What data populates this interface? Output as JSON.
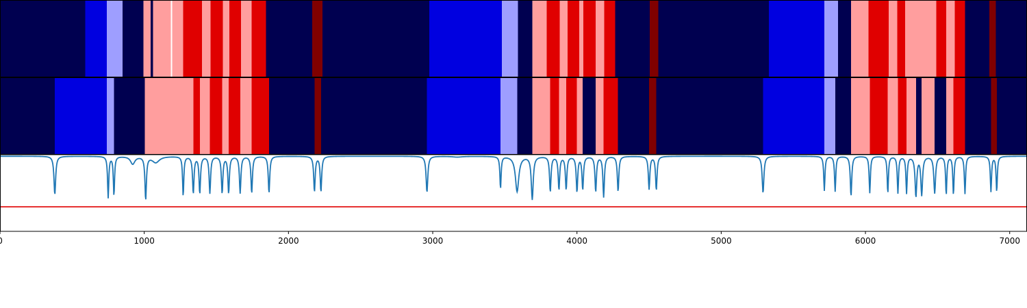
{
  "chart_data": [
    {
      "type": "heatmap",
      "title": "",
      "xlim": [
        0,
        7120
      ],
      "colors": {
        "0": "#000050",
        "1": "#0000e0",
        "2": "#9e9eff",
        "3": "#ff9e9e",
        "4": "#e00000",
        "5": "#800000",
        "6": "#ffffff"
      },
      "segments": [
        [
          0,
          590,
          0
        ],
        [
          590,
          740,
          1
        ],
        [
          740,
          850,
          2
        ],
        [
          850,
          995,
          0
        ],
        [
          995,
          1045,
          3
        ],
        [
          1045,
          1060,
          0
        ],
        [
          1060,
          1185,
          3
        ],
        [
          1185,
          1193,
          6
        ],
        [
          1193,
          1270,
          3
        ],
        [
          1270,
          1400,
          4
        ],
        [
          1400,
          1460,
          3
        ],
        [
          1460,
          1545,
          4
        ],
        [
          1545,
          1590,
          3
        ],
        [
          1590,
          1670,
          4
        ],
        [
          1670,
          1745,
          3
        ],
        [
          1745,
          1845,
          4
        ],
        [
          1845,
          2165,
          0
        ],
        [
          2165,
          2235,
          5
        ],
        [
          2235,
          2975,
          0
        ],
        [
          2975,
          3480,
          1
        ],
        [
          3480,
          3590,
          2
        ],
        [
          3590,
          3690,
          0
        ],
        [
          3690,
          3790,
          3
        ],
        [
          3790,
          3880,
          4
        ],
        [
          3880,
          3935,
          3
        ],
        [
          3935,
          4015,
          4
        ],
        [
          4015,
          4045,
          3
        ],
        [
          4045,
          4130,
          4
        ],
        [
          4130,
          4190,
          3
        ],
        [
          4190,
          4265,
          4
        ],
        [
          4265,
          4505,
          0
        ],
        [
          4505,
          4565,
          5
        ],
        [
          4565,
          5330,
          0
        ],
        [
          5330,
          5715,
          1
        ],
        [
          5715,
          5810,
          2
        ],
        [
          5810,
          5900,
          0
        ],
        [
          5900,
          6020,
          3
        ],
        [
          6020,
          6160,
          4
        ],
        [
          6160,
          6220,
          3
        ],
        [
          6220,
          6275,
          4
        ],
        [
          6275,
          6490,
          3
        ],
        [
          6490,
          6560,
          4
        ],
        [
          6560,
          6620,
          3
        ],
        [
          6620,
          6690,
          4
        ],
        [
          6690,
          6860,
          0
        ],
        [
          6860,
          6905,
          5
        ],
        [
          6905,
          7120,
          0
        ]
      ]
    },
    {
      "type": "heatmap",
      "title": "",
      "xlim": [
        0,
        7120
      ],
      "segments": [
        [
          0,
          380,
          0
        ],
        [
          380,
          740,
          1
        ],
        [
          740,
          790,
          2
        ],
        [
          790,
          1005,
          0
        ],
        [
          1005,
          1340,
          3
        ],
        [
          1340,
          1385,
          4
        ],
        [
          1385,
          1455,
          3
        ],
        [
          1455,
          1540,
          4
        ],
        [
          1540,
          1585,
          3
        ],
        [
          1585,
          1665,
          4
        ],
        [
          1665,
          1745,
          3
        ],
        [
          1745,
          1865,
          4
        ],
        [
          1865,
          2180,
          0
        ],
        [
          2180,
          2225,
          5
        ],
        [
          2225,
          2960,
          0
        ],
        [
          2960,
          3470,
          1
        ],
        [
          3470,
          3585,
          2
        ],
        [
          3585,
          3690,
          0
        ],
        [
          3690,
          3815,
          3
        ],
        [
          3815,
          3875,
          4
        ],
        [
          3875,
          3925,
          3
        ],
        [
          3925,
          4000,
          4
        ],
        [
          4000,
          4040,
          3
        ],
        [
          4040,
          4130,
          0
        ],
        [
          4130,
          4185,
          3
        ],
        [
          4185,
          4285,
          4
        ],
        [
          4285,
          4500,
          0
        ],
        [
          4500,
          4550,
          5
        ],
        [
          4550,
          5290,
          0
        ],
        [
          5290,
          5715,
          1
        ],
        [
          5715,
          5790,
          2
        ],
        [
          5790,
          5900,
          0
        ],
        [
          5900,
          6030,
          3
        ],
        [
          6030,
          6155,
          4
        ],
        [
          6155,
          6225,
          3
        ],
        [
          6225,
          6285,
          4
        ],
        [
          6285,
          6350,
          3
        ],
        [
          6350,
          6390,
          0
        ],
        [
          6390,
          6480,
          3
        ],
        [
          6480,
          6560,
          0
        ],
        [
          6560,
          6610,
          3
        ],
        [
          6610,
          6690,
          4
        ],
        [
          6690,
          6870,
          0
        ],
        [
          6870,
          6910,
          5
        ],
        [
          6910,
          7120,
          0
        ]
      ]
    },
    {
      "type": "line",
      "title": "",
      "xlabel": "",
      "ylabel": "",
      "xlim": [
        0,
        7120
      ],
      "ylim": [
        0,
        1
      ],
      "xticks": [
        0,
        1000,
        2000,
        3000,
        4000,
        5000,
        6000,
        7000
      ],
      "xtick_labels": [
        "0",
        "1000",
        "2000",
        "3000",
        "4000",
        "5000",
        "6000",
        "7000"
      ],
      "line_color": "#1f77b4",
      "threshold": 0.32,
      "threshold_color": "#e00000",
      "baseline": 0.98,
      "dips": [
        [
          380,
          0.48,
          7
        ],
        [
          750,
          0.44,
          5
        ],
        [
          790,
          0.47,
          5
        ],
        [
          920,
          0.88,
          18
        ],
        [
          1010,
          0.42,
          6
        ],
        [
          1080,
          0.9,
          30
        ],
        [
          1270,
          0.46,
          5
        ],
        [
          1340,
          0.5,
          6
        ],
        [
          1385,
          0.5,
          6
        ],
        [
          1455,
          0.5,
          6
        ],
        [
          1540,
          0.5,
          6
        ],
        [
          1585,
          0.5,
          6
        ],
        [
          1665,
          0.5,
          6
        ],
        [
          1745,
          0.5,
          6
        ],
        [
          1865,
          0.5,
          6
        ],
        [
          2180,
          0.52,
          6
        ],
        [
          2225,
          0.52,
          6
        ],
        [
          2960,
          0.51,
          7
        ],
        [
          3170,
          0.97,
          40
        ],
        [
          3470,
          0.56,
          5
        ],
        [
          3585,
          0.52,
          14
        ],
        [
          3690,
          0.42,
          8
        ],
        [
          3815,
          0.52,
          6
        ],
        [
          3875,
          0.55,
          6
        ],
        [
          3925,
          0.55,
          6
        ],
        [
          4000,
          0.52,
          6
        ],
        [
          4040,
          0.55,
          6
        ],
        [
          4130,
          0.52,
          6
        ],
        [
          4185,
          0.45,
          6
        ],
        [
          4285,
          0.52,
          6
        ],
        [
          4500,
          0.55,
          6
        ],
        [
          4550,
          0.54,
          6
        ],
        [
          5290,
          0.5,
          7
        ],
        [
          5715,
          0.53,
          5
        ],
        [
          5790,
          0.52,
          5
        ],
        [
          5900,
          0.46,
          6
        ],
        [
          6030,
          0.5,
          5
        ],
        [
          6155,
          0.5,
          5
        ],
        [
          6225,
          0.5,
          5
        ],
        [
          6285,
          0.5,
          5
        ],
        [
          6350,
          0.46,
          7
        ],
        [
          6390,
          0.48,
          7
        ],
        [
          6480,
          0.5,
          7
        ],
        [
          6560,
          0.48,
          5
        ],
        [
          6610,
          0.48,
          5
        ],
        [
          6690,
          0.49,
          5
        ],
        [
          6870,
          0.52,
          5
        ],
        [
          6910,
          0.52,
          5
        ]
      ]
    }
  ]
}
